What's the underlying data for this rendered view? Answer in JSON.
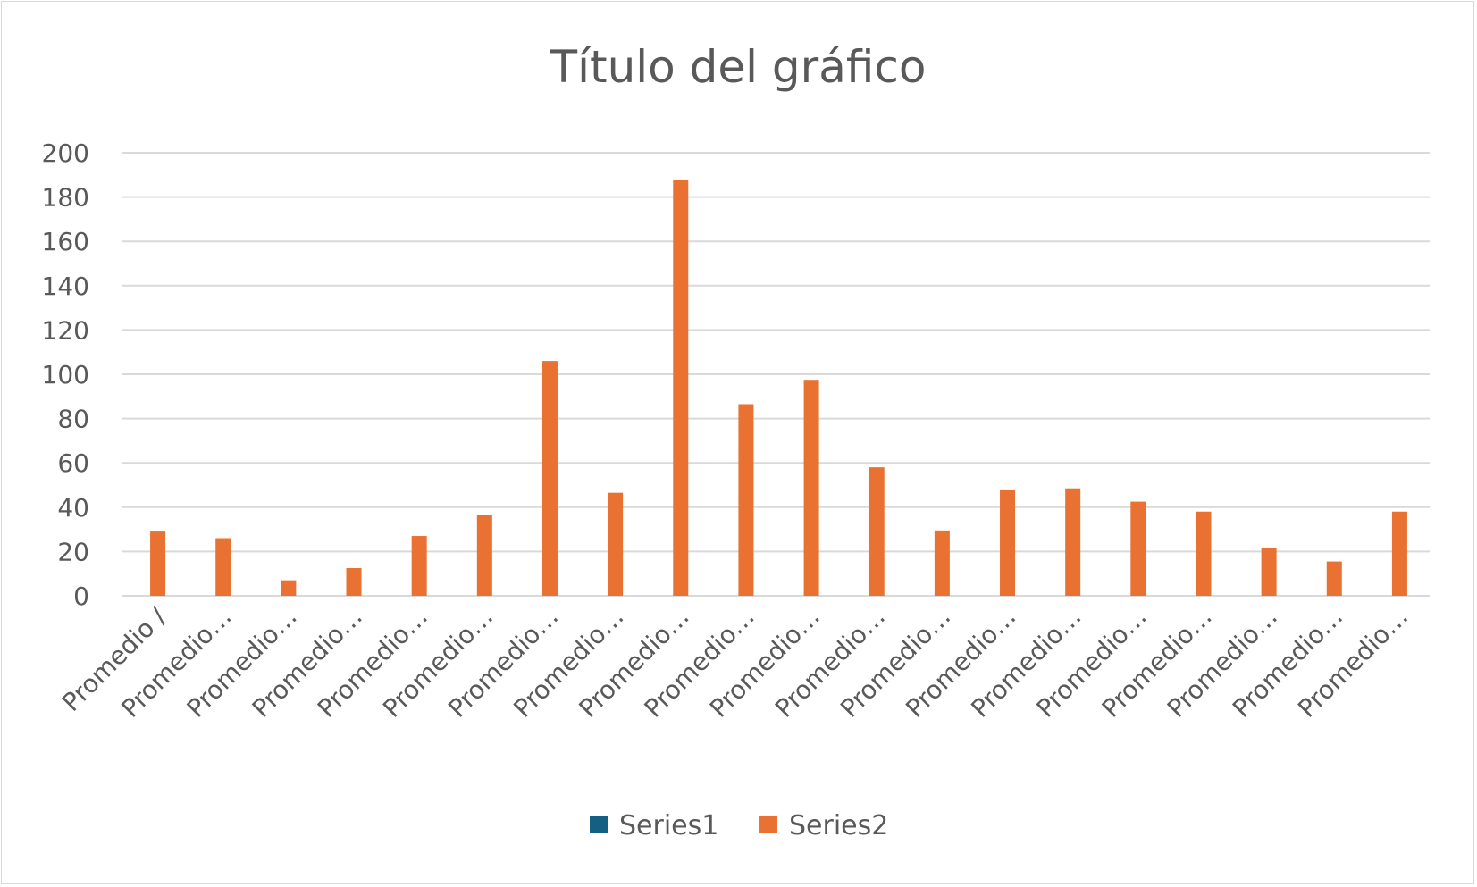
{
  "chart_data": {
    "type": "bar",
    "title": "Título del gráfico",
    "xlabel": "",
    "ylabel": "",
    "ylim": [
      0,
      200
    ],
    "yticks": [
      0,
      20,
      40,
      60,
      80,
      100,
      120,
      140,
      160,
      180,
      200
    ],
    "grid": true,
    "legend_position": "bottom",
    "categories": [
      "Promedio /",
      "Promedio…",
      "Promedio…",
      "Promedio…",
      "Promedio…",
      "Promedio…",
      "Promedio…",
      "Promedio…",
      "Promedio…",
      "Promedio…",
      "Promedio…",
      "Promedio…",
      "Promedio…",
      "Promedio…",
      "Promedio…",
      "Promedio…",
      "Promedio…",
      "Promedio…",
      "Promedio…",
      "Promedio…"
    ],
    "series": [
      {
        "name": "Series1",
        "color": "#156082",
        "values": [
          0,
          0,
          0,
          0,
          0,
          0,
          0,
          0,
          0,
          0,
          0,
          0,
          0,
          0,
          0,
          0,
          0,
          0,
          0,
          0
        ]
      },
      {
        "name": "Series2",
        "color": "#E97132",
        "values": [
          29,
          26,
          7,
          12.5,
          27,
          36.5,
          106,
          46.5,
          187.5,
          86.5,
          97.5,
          58,
          29.5,
          48,
          48.5,
          42.5,
          38,
          21.5,
          15.5,
          38
        ]
      }
    ]
  }
}
